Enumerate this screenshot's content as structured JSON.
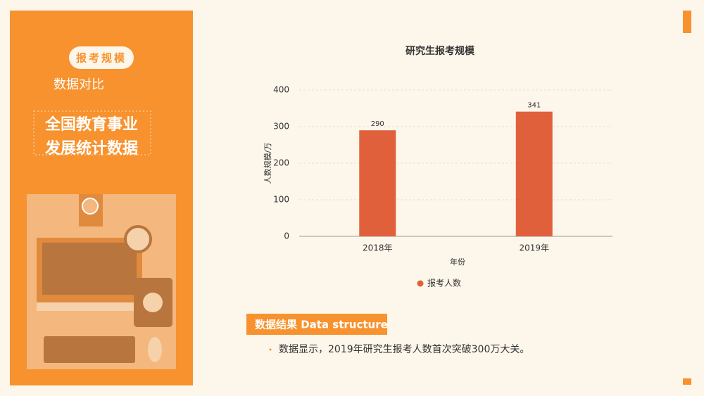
{
  "sidebar": {
    "tag": "报考规模",
    "subtitle": "数据对比",
    "heading_lines": [
      "全国教育事业",
      "发展统计数据"
    ]
  },
  "section": {
    "label": "数据结果  Data structure",
    "text": "数据显示，2019年研究生报考人数首次突破300万大关。"
  },
  "chart_data": {
    "type": "bar",
    "title": "研究生报考规模",
    "categories": [
      "2018年",
      "2019年"
    ],
    "series": [
      {
        "name": "报考人数",
        "color": "#e0603c",
        "values": [
          290,
          341
        ]
      }
    ],
    "x_label": "年份",
    "y_label": "人数规模/万",
    "ylim": [
      0,
      400
    ],
    "yticks": [
      0,
      100,
      200,
      300,
      400
    ],
    "grid": true,
    "legend": "bottom"
  }
}
